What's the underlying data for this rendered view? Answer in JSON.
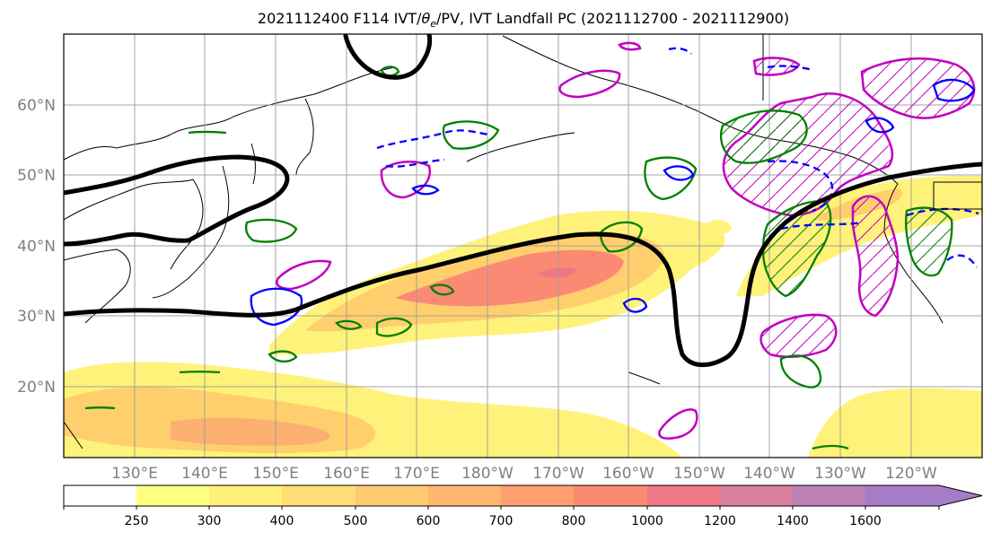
{
  "title_prefix": "2021112400 F114 IVT/",
  "title_theta": "θ",
  "title_theta_sub": "e",
  "title_suffix": "/PV, IVT Landfall PC (2021112700 - 2021112900)",
  "lat_labels": [
    "60°N",
    "50°N",
    "40°N",
    "30°N",
    "20°N"
  ],
  "lon_labels": [
    "130°E",
    "140°E",
    "150°E",
    "160°E",
    "170°E",
    "180°W",
    "170°W",
    "160°W",
    "150°W",
    "140°W",
    "130°W",
    "120°W"
  ],
  "colorbar": {
    "ticks": [
      "250",
      "300",
      "400",
      "500",
      "600",
      "700",
      "800",
      "1000",
      "1200",
      "1400",
      "1600"
    ],
    "colors": [
      "#ffff80",
      "#fff07a",
      "#ffde77",
      "#ffcc72",
      "#ffb670",
      "#ff9f70",
      "#fb8a72",
      "#f07884",
      "#da7f9d",
      "#bc82b6",
      "#a67cc8"
    ]
  },
  "colors": {
    "ivt_low": "#fff27a",
    "ivt_mid": "#ffcf6e",
    "ivt_high": "#fb8a74",
    "ivt_max": "#f07884",
    "pv_contour": "#000000",
    "theta_e_pos": "#008000",
    "theta_e_neg": "#0000ff",
    "pc_hatch": "#c000c0"
  }
}
